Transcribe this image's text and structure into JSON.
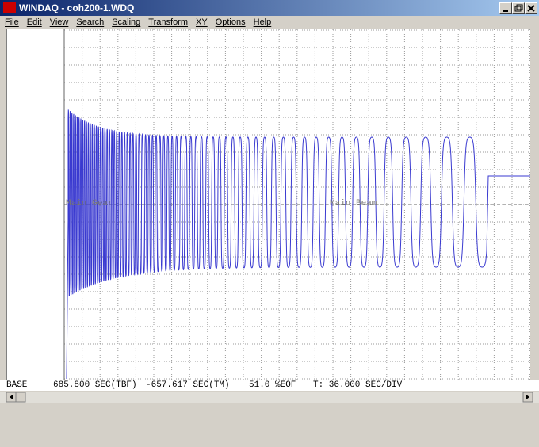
{
  "window": {
    "title": "WINDAQ - coh200-1.WDQ"
  },
  "menu": [
    "File",
    "Edit",
    "View",
    "Search",
    "Scaling",
    "Transform",
    "XY",
    "Options",
    "Help"
  ],
  "annotations": [
    "Main Gear",
    "Main Beam"
  ],
  "status": {
    "channel": "BASE",
    "tbf": "685.800 SEC(TBF)",
    "tm": "-657.617 SEC(TM)",
    "eof": "51.0 %EOF",
    "div": "T: 36.000 SEC/DIV"
  }
}
